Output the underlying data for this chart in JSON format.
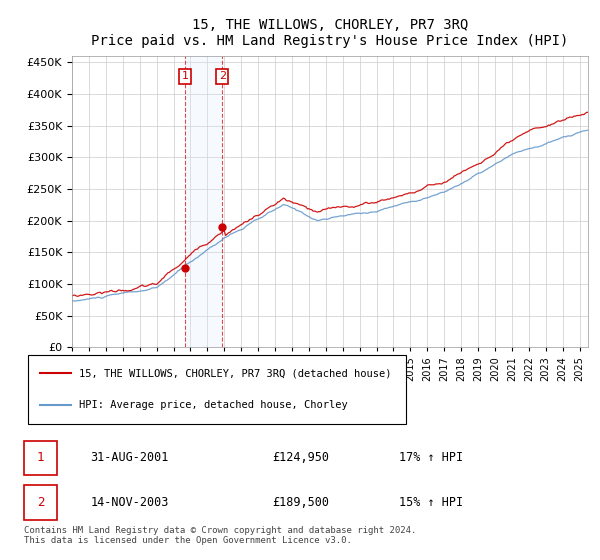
{
  "title": "15, THE WILLOWS, CHORLEY, PR7 3RQ",
  "subtitle": "Price paid vs. HM Land Registry's House Price Index (HPI)",
  "xlabel": "",
  "ylabel": "",
  "ylim": [
    0,
    460000
  ],
  "yticks": [
    0,
    50000,
    100000,
    150000,
    200000,
    250000,
    300000,
    350000,
    400000,
    450000
  ],
  "background_color": "#ffffff",
  "grid_color": "#cccccc",
  "sale1_date": 2001.67,
  "sale1_price": 124950,
  "sale2_date": 2003.88,
  "sale2_price": 189500,
  "legend_line1": "15, THE WILLOWS, CHORLEY, PR7 3RQ (detached house)",
  "legend_line2": "HPI: Average price, detached house, Chorley",
  "table_row1": [
    "1",
    "31-AUG-2001",
    "£124,950",
    "17% ↑ HPI"
  ],
  "table_row2": [
    "2",
    "14-NOV-2003",
    "£189,500",
    "15% ↑ HPI"
  ],
  "footer": "Contains HM Land Registry data © Crown copyright and database right 2024.\nThis data is licensed under the Open Government Licence v3.0.",
  "hpi_line_color": "#6699cc",
  "price_line_color": "#cc0000",
  "highlight_fill": "#ddeeff"
}
